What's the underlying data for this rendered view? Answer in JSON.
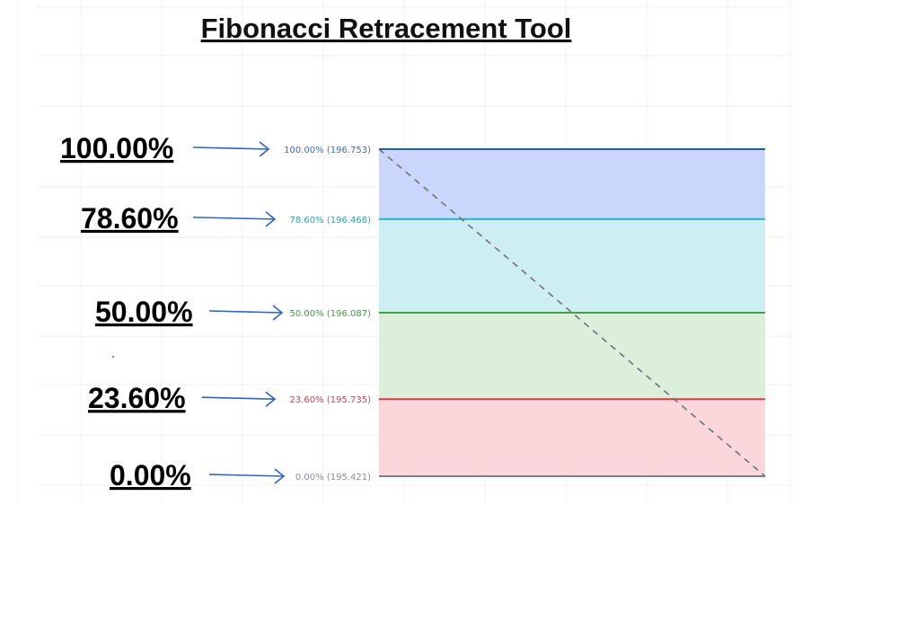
{
  "chart_data": {
    "type": "fibonacci-retracement",
    "title": "Fibonacci Retracement Tool",
    "levels": [
      {
        "ratio": 1.0,
        "percent_label": "100.00%",
        "price": 196.753,
        "level_label": "100.00% (196.753)",
        "line_color": "#1f5fae",
        "fill_color": "#cad6fb",
        "text_color": "#3d69c9"
      },
      {
        "ratio": 0.786,
        "percent_label": "78.60%",
        "price": 196.468,
        "level_label": "78.60% (196.468)",
        "line_color": "#23b7c9",
        "fill_color": "#cdeff4",
        "text_color": "#22a7b9"
      },
      {
        "ratio": 0.5,
        "percent_label": "50.00%",
        "price": 196.087,
        "level_label": "50.00% (196.087)",
        "line_color": "#43a047",
        "fill_color": "#dbefdb",
        "text_color": "#3e9a43"
      },
      {
        "ratio": 0.236,
        "percent_label": "23.60%",
        "price": 195.735,
        "level_label": "23.60% (195.735)",
        "line_color": "#d93c46",
        "fill_color": "#fbd6da",
        "text_color": "#d2404a"
      },
      {
        "ratio": 0.0,
        "percent_label": "0.00%",
        "price": 195.421,
        "level_label": "0.00% (195.421)",
        "line_color": "#7d8089",
        "fill_color": "#ffffff",
        "text_color": "#8a8d95"
      }
    ],
    "trend_line": {
      "style": "dashed",
      "from_ratio": 1.0,
      "to_ratio": 0.0,
      "color": "#6f7278"
    },
    "arrow_color": "#2f62c5",
    "grid": true
  }
}
